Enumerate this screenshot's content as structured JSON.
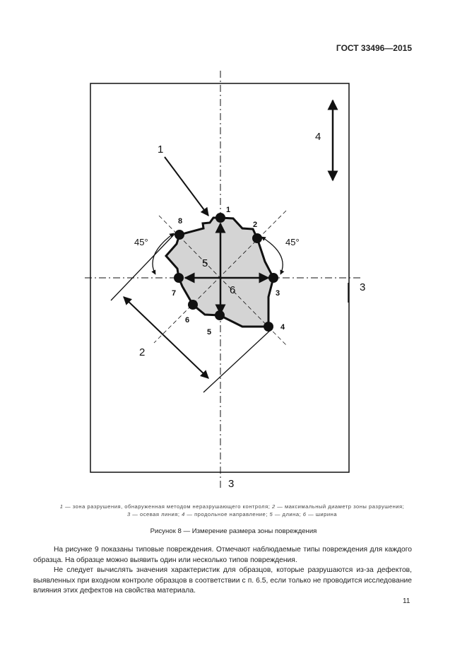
{
  "header": {
    "doc_code": "ГОСТ 33496—2015"
  },
  "figure": {
    "point_labels": [
      "1",
      "2",
      "3",
      "4",
      "5",
      "6",
      "7",
      "8"
    ],
    "callouts": {
      "c1": "1",
      "c2": "2",
      "c3_right": "3",
      "c3_bottom": "3",
      "c4": "4",
      "c5": "5",
      "c6": "6"
    },
    "angle_left": "45°",
    "angle_right": "45°",
    "fill_color": "#d4d4d4"
  },
  "legend": {
    "items": [
      {
        "num": "1",
        "text": " — зона разрушения, обнаруженная методом неразрушающего контроля; "
      },
      {
        "num": "2",
        "text": " — максимальный диаметр зоны разрушения;"
      },
      {
        "num": "3",
        "text": " — осевая линия; "
      },
      {
        "num": "4",
        "text": " — продольное направление; "
      },
      {
        "num": "5",
        "text": " — длина; "
      },
      {
        "num": "6",
        "text": " — ширина"
      }
    ]
  },
  "caption": "Рисунок 8 — Измерение размера зоны повреждения",
  "paragraphs": [
    "На рисунке 9 показаны типовые повреждения. Отмечают наблюдаемые типы повреждения для каждого образца. На образце можно выявить один или несколько типов повреждения.",
    "Не следует вычислять значения характеристик для образцов, которые разрушаются из-за дефектов, выявленных при входном контроле образцов в соответствии с п. 6.5, если только не проводится исследование влияния этих дефектов на свойства материала."
  ],
  "page_number": "11"
}
